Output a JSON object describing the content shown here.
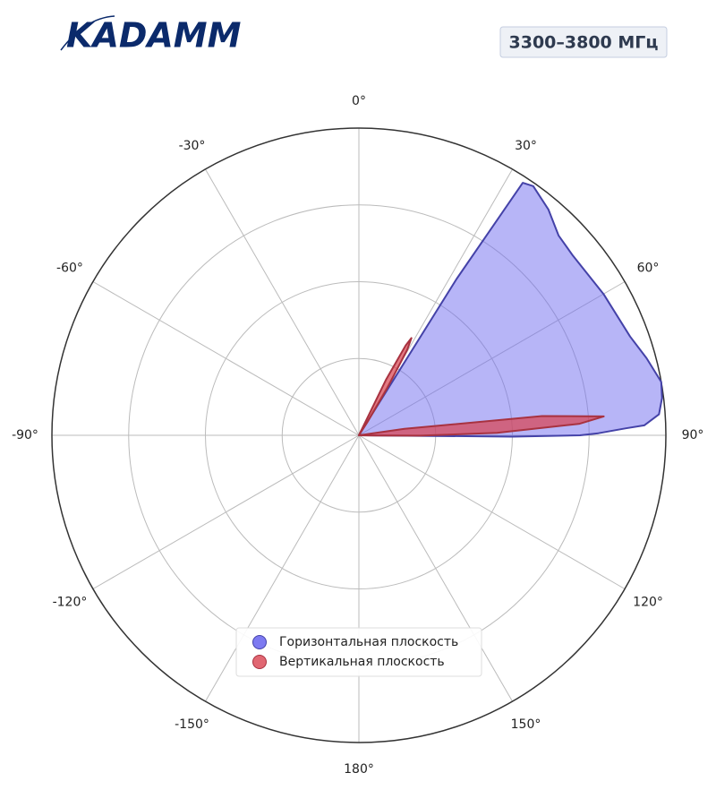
{
  "logo": "KADAMM",
  "chart_data": {
    "type": "polar",
    "title": "3300–3800 МГц",
    "theta_zero": "top",
    "theta_direction": "clockwise",
    "rlim": [
      0,
      1
    ],
    "rticks": [
      0.25,
      0.5,
      0.75
    ],
    "grid": true,
    "legend": "lower center",
    "thetaticks": [
      {
        "value": 0,
        "label": "0°"
      },
      {
        "value": 30,
        "label": "30°"
      },
      {
        "value": 60,
        "label": "60°"
      },
      {
        "value": 90,
        "label": "90°"
      },
      {
        "value": 120,
        "label": "120°"
      },
      {
        "value": 150,
        "label": "150°"
      },
      {
        "value": 180,
        "label": "180°"
      },
      {
        "value": -150,
        "label": "-150°"
      },
      {
        "value": -120,
        "label": "-120°"
      },
      {
        "value": -90,
        "label": "-90°"
      },
      {
        "value": -60,
        "label": "-60°"
      },
      {
        "value": -30,
        "label": "-30°"
      }
    ],
    "series": [
      {
        "name": "Горизонтальная плоскость",
        "color": "#6f6cf0",
        "edge": "#4442a8",
        "theta": [
          31,
          32,
          33,
          35,
          40,
          45,
          50,
          60,
          70,
          75,
          80,
          83,
          86,
          88,
          88.5,
          89.5,
          90,
          90.5,
          91
        ],
        "values": [
          0,
          0.6,
          0.98,
          0.99,
          0.96,
          0.92,
          0.91,
          0.92,
          0.94,
          0.97,
          1.0,
          0.995,
          0.98,
          0.93,
          0.87,
          0.78,
          0.72,
          0.5,
          0
        ]
      },
      {
        "name": "Вертикальная плоскость",
        "color": "#d9414f",
        "edge": "#a83240",
        "theta": [
          24,
          26,
          27.5,
          28.4,
          29.5,
          31,
          33,
          35,
          80,
          82,
          84,
          85.6,
          87,
          89,
          90.3,
          91,
          92
        ],
        "values": [
          0,
          0.2,
          0.33,
          0.36,
          0.32,
          0.18,
          0.05,
          0,
          0,
          0.15,
          0.6,
          0.8,
          0.72,
          0.45,
          0.2,
          0.05,
          0
        ]
      }
    ]
  }
}
